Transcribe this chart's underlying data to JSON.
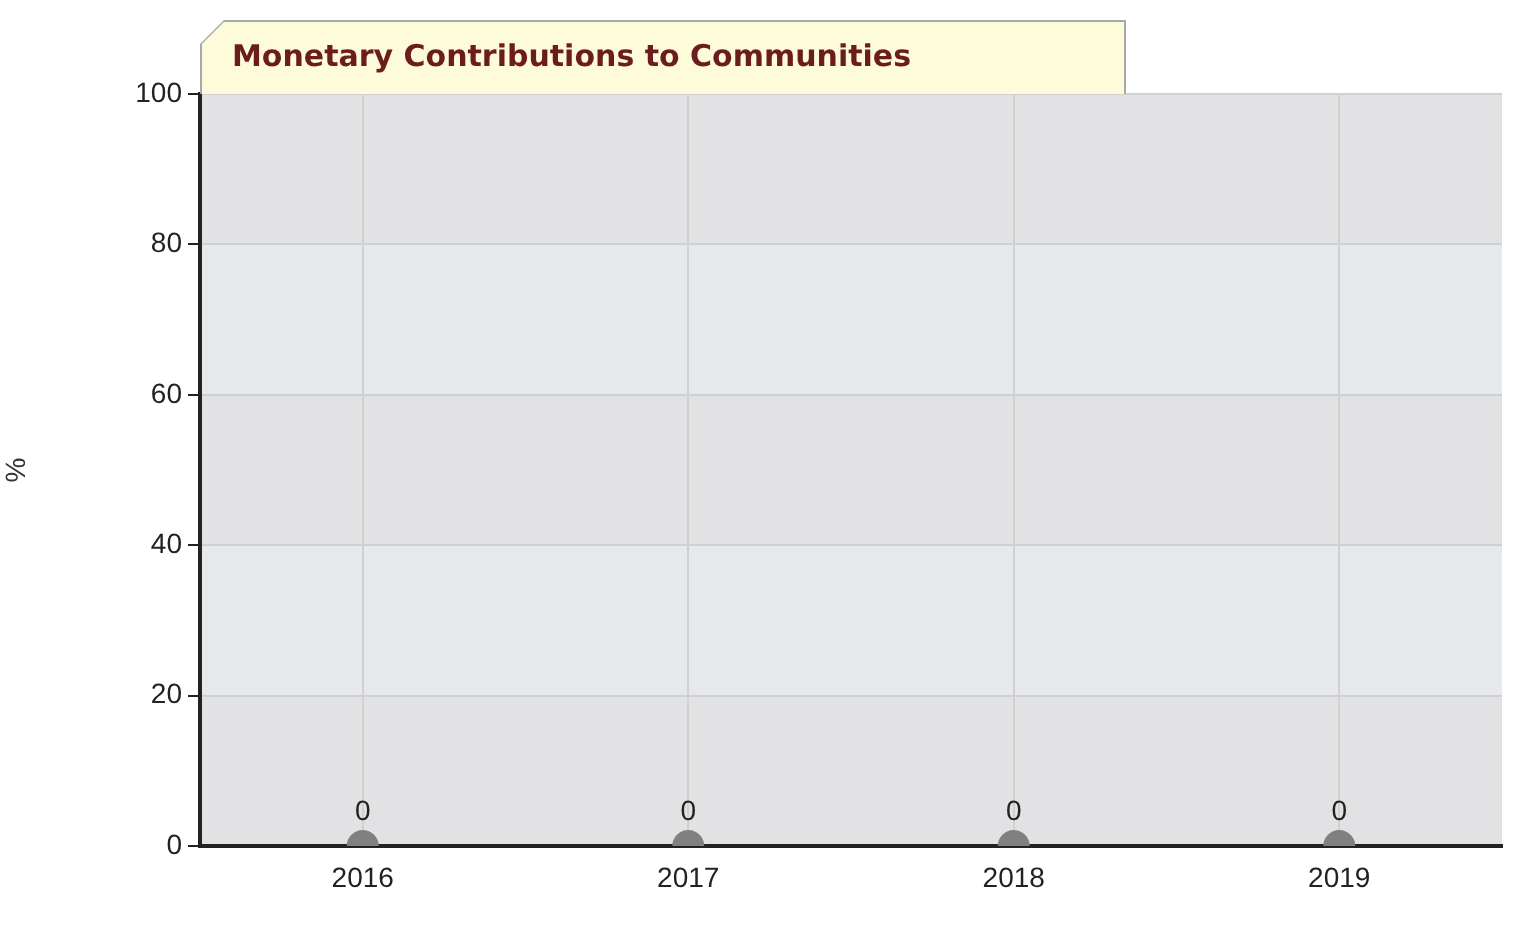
{
  "chart_data": {
    "type": "scatter",
    "title": "Monetary Contributions to Communities",
    "ylabel": "%",
    "categories": [
      "2016",
      "2017",
      "2018",
      "2019"
    ],
    "values": [
      0,
      0,
      0,
      0
    ],
    "color": "#808080",
    "ylim": [
      0,
      100
    ],
    "yticks": [
      0,
      20,
      40,
      60,
      80,
      100
    ],
    "grid": true,
    "legend": false,
    "marker": "circle",
    "data_labels": true
  }
}
